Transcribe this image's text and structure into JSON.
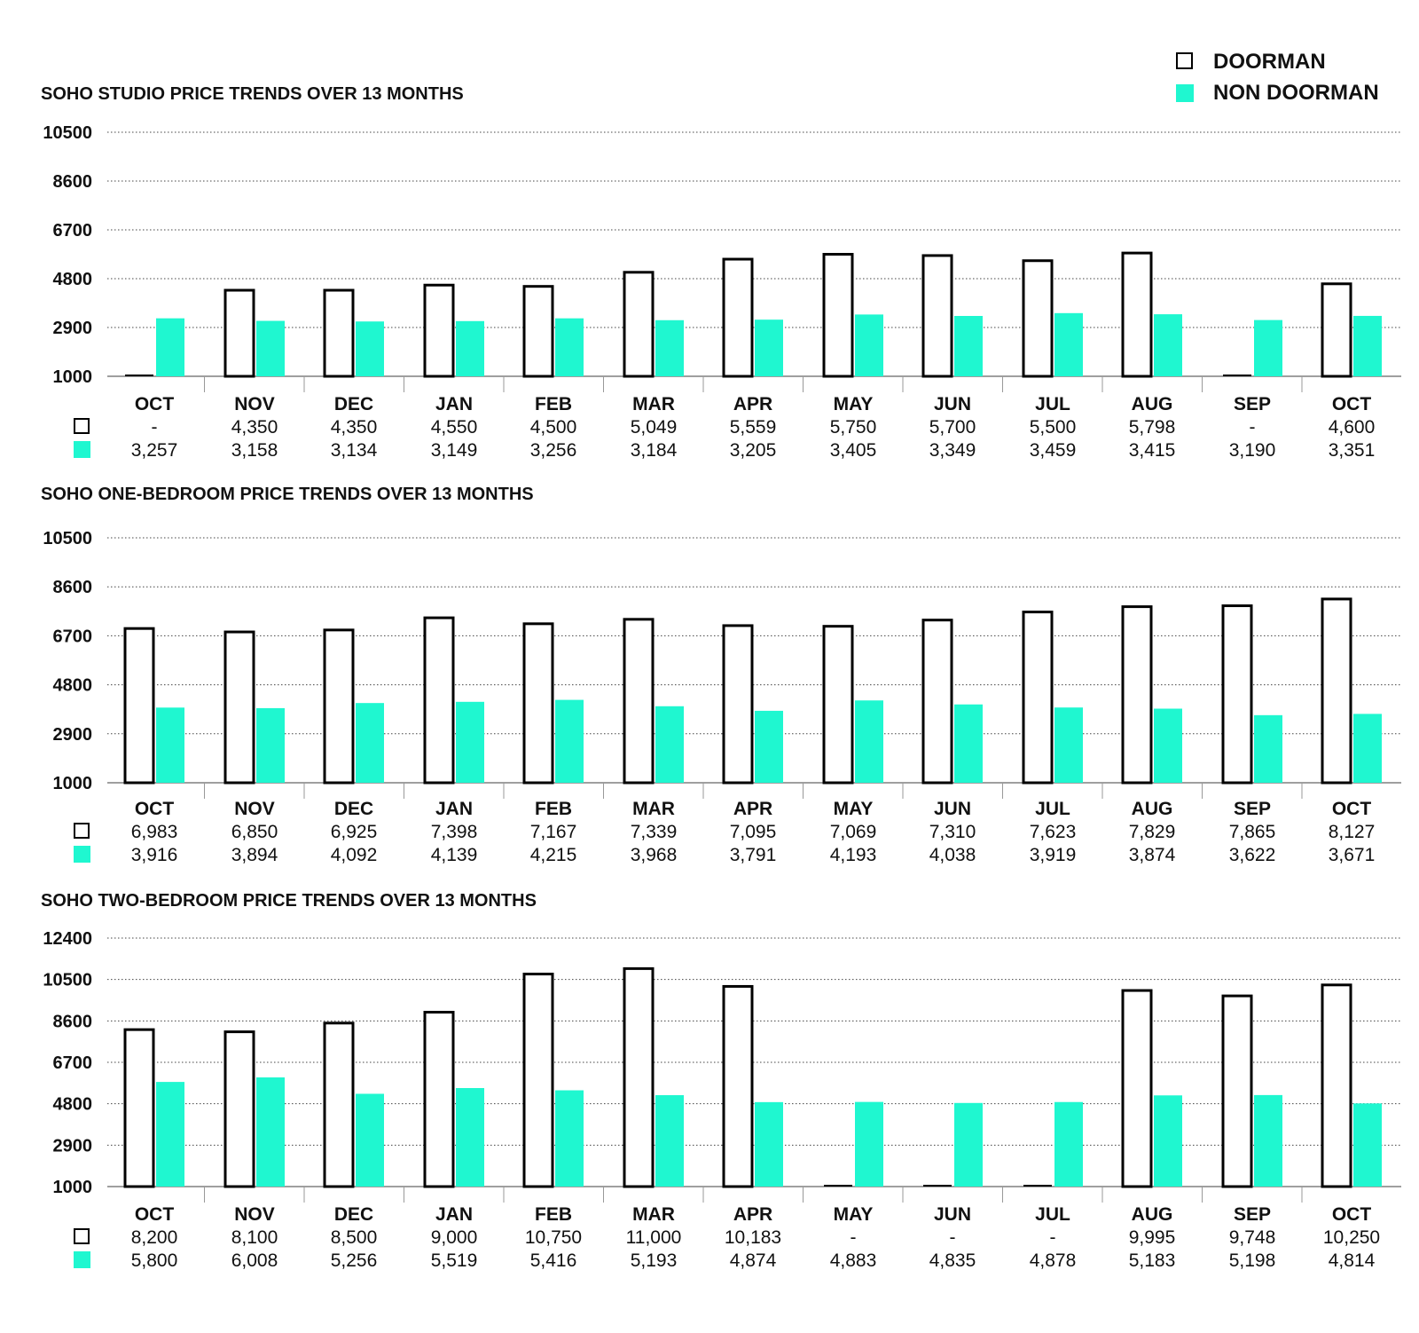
{
  "legend": {
    "doorman_label": "DOORMAN",
    "non_doorman_label": "NON DOORMAN"
  },
  "colors": {
    "doorman_fill": "#ffffff",
    "doorman_stroke": "#000000",
    "non_doorman": "#1ff7d0",
    "grid": "#444444",
    "text": "#111111"
  },
  "chart_data": [
    {
      "type": "bar",
      "title": "SOHO STUDIO PRICE TRENDS OVER 13 MONTHS",
      "categories": [
        "OCT",
        "NOV",
        "DEC",
        "JAN",
        "FEB",
        "MAR",
        "APR",
        "MAY",
        "JUN",
        "JUL",
        "AUG",
        "SEP",
        "OCT"
      ],
      "yticks": [
        1000,
        2900,
        4800,
        6700,
        8600,
        10500
      ],
      "ylim": [
        1000,
        10500
      ],
      "grid": true,
      "series": [
        {
          "name": "DOORMAN",
          "values": [
            null,
            4350,
            4350,
            4550,
            4500,
            5049,
            5559,
            5750,
            5700,
            5500,
            5798,
            null,
            4600
          ],
          "labels": [
            "-",
            "4,350",
            "4,350",
            "4,550",
            "4,500",
            "5,049",
            "5,559",
            "5,750",
            "5,700",
            "5,500",
            "5,798",
            "-",
            "4,600"
          ]
        },
        {
          "name": "NON DOORMAN",
          "values": [
            3257,
            3158,
            3134,
            3149,
            3256,
            3184,
            3205,
            3405,
            3349,
            3459,
            3415,
            3190,
            3351
          ],
          "labels": [
            "3,257",
            "3,158",
            "3,134",
            "3,149",
            "3,256",
            "3,184",
            "3,205",
            "3,405",
            "3,349",
            "3,459",
            "3,415",
            "3,190",
            "3,351"
          ]
        }
      ]
    },
    {
      "type": "bar",
      "title": "SOHO ONE-BEDROOM PRICE TRENDS OVER 13 MONTHS",
      "categories": [
        "OCT",
        "NOV",
        "DEC",
        "JAN",
        "FEB",
        "MAR",
        "APR",
        "MAY",
        "JUN",
        "JUL",
        "AUG",
        "SEP",
        "OCT"
      ],
      "yticks": [
        1000,
        2900,
        4800,
        6700,
        8600,
        10500
      ],
      "ylim": [
        1000,
        10500
      ],
      "grid": true,
      "series": [
        {
          "name": "DOORMAN",
          "values": [
            6983,
            6850,
            6925,
            7398,
            7167,
            7339,
            7095,
            7069,
            7310,
            7623,
            7829,
            7865,
            8127
          ],
          "labels": [
            "6,983",
            "6,850",
            "6,925",
            "7,398",
            "7,167",
            "7,339",
            "7,095",
            "7,069",
            "7,310",
            "7,623",
            "7,829",
            "7,865",
            "8,127"
          ]
        },
        {
          "name": "NON DOORMAN",
          "values": [
            3916,
            3894,
            4092,
            4139,
            4215,
            3968,
            3791,
            4193,
            4038,
            3919,
            3874,
            3622,
            3671
          ],
          "labels": [
            "3,916",
            "3,894",
            "4,092",
            "4,139",
            "4,215",
            "3,968",
            "3,791",
            "4,193",
            "4,038",
            "3,919",
            "3,874",
            "3,622",
            "3,671"
          ]
        }
      ]
    },
    {
      "type": "bar",
      "title": "SOHO TWO-BEDROOM PRICE TRENDS OVER 13 MONTHS",
      "categories": [
        "OCT",
        "NOV",
        "DEC",
        "JAN",
        "FEB",
        "MAR",
        "APR",
        "MAY",
        "JUN",
        "JUL",
        "AUG",
        "SEP",
        "OCT"
      ],
      "yticks": [
        1000,
        2900,
        4800,
        6700,
        8600,
        10500,
        12400
      ],
      "ylim": [
        1000,
        12400
      ],
      "grid": true,
      "series": [
        {
          "name": "DOORMAN",
          "values": [
            8200,
            8100,
            8500,
            9000,
            10750,
            11000,
            10183,
            null,
            null,
            null,
            9995,
            9748,
            10250
          ],
          "labels": [
            "8,200",
            "8,100",
            "8,500",
            "9,000",
            "10,750",
            "11,000",
            "10,183",
            "-",
            "-",
            "-",
            "9,995",
            "9,748",
            "10,250"
          ]
        },
        {
          "name": "NON DOORMAN",
          "values": [
            5800,
            6008,
            5256,
            5519,
            5416,
            5193,
            4874,
            4883,
            4835,
            4878,
            5183,
            5198,
            4814
          ],
          "labels": [
            "5,800",
            "6,008",
            "5,256",
            "5,519",
            "5,416",
            "5,193",
            "4,874",
            "4,883",
            "4,835",
            "4,878",
            "5,183",
            "5,198",
            "4,814"
          ]
        }
      ]
    }
  ]
}
